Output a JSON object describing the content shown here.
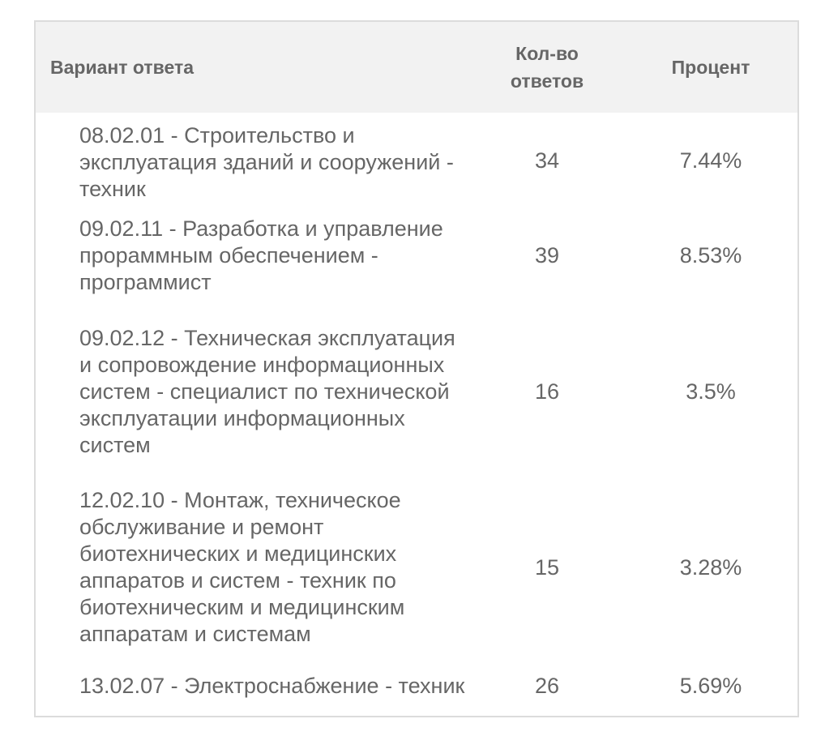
{
  "table": {
    "headers": {
      "answer": "Вариант ответа",
      "count": "Кол-во ответов",
      "percent": "Процент"
    },
    "rows": [
      {
        "answer": "08.02.01 - Строительство и эксплуатация зданий и сооружений - техник",
        "count": "34",
        "percent": "7.44%"
      },
      {
        "answer": "09.02.11 - Разработка и управление прораммным обеспечением - программист",
        "count": "39",
        "percent": "8.53%"
      },
      {
        "answer": "09.02.12 - Техническая эксплуатация и сопровождение информационных систем - специалист по технической эксплуатации информационных систем",
        "count": "16",
        "percent": "3.5%"
      },
      {
        "answer": "12.02.10 - Монтаж, техническое обслуживание и ремонт биотехнических и медицинских аппаратов и систем - техник по биотехническим и медицинским аппаратам и системам",
        "count": "15",
        "percent": "3.28%"
      },
      {
        "answer": "13.02.07 - Электроснабжение - техник",
        "count": "26",
        "percent": "5.69%"
      }
    ]
  },
  "colors": {
    "header_bg": "#f2f2f2",
    "text": "#666666",
    "border": "#dcdcdc"
  }
}
